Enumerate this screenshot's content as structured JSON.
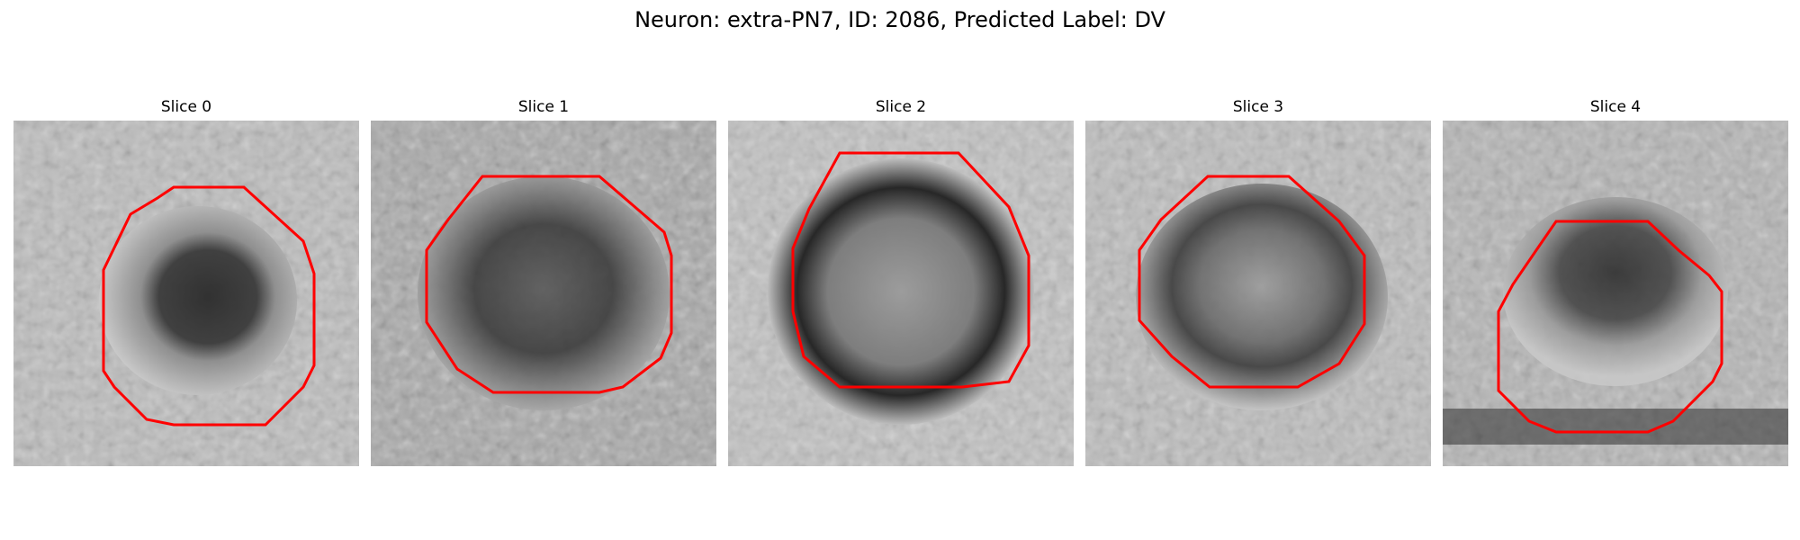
{
  "figure": {
    "title": "Neuron: extra-PN7, ID: 2086, Predicted Label: DV"
  },
  "panels": [
    {
      "title": "Slice 0"
    },
    {
      "title": "Slice 1"
    },
    {
      "title": "Slice 2"
    },
    {
      "title": "Slice 3"
    },
    {
      "title": "Slice 4"
    }
  ],
  "colors": {
    "contour": "#ff0000",
    "background": "#ffffff"
  }
}
